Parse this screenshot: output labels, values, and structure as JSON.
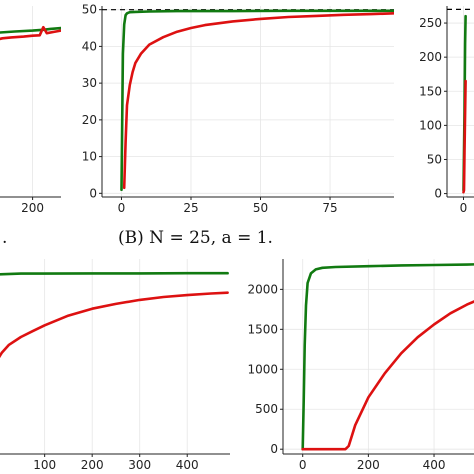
{
  "captions": {
    "left_fragment": ".",
    "middle": "(B) N = 25, a = 1."
  },
  "colors": {
    "green": "#117a11",
    "red": "#dd1111",
    "reference": "#000000"
  },
  "chart_data": [
    {
      "id": "top-left",
      "type": "line",
      "xticks": [
        200
      ],
      "yticks": [],
      "xlim": [
        -40,
        360
      ],
      "ylim": [
        0,
        45
      ],
      "series": [
        {
          "color": "green",
          "x": [
            -40,
            0,
            100,
            200,
            260,
            300,
            360
          ],
          "y": [
            38.5,
            38.7,
            39.0,
            39.2,
            39.4,
            39.6,
            39.8
          ]
        },
        {
          "color": "red",
          "x": [
            -40,
            -10,
            30,
            80,
            150,
            200,
            240,
            260,
            280,
            320,
            360
          ],
          "y": [
            36.8,
            37.0,
            37.4,
            37.6,
            37.8,
            38.0,
            38.1,
            40.0,
            38.6,
            38.9,
            39.2
          ]
        }
      ]
    },
    {
      "id": "top-middle",
      "type": "line",
      "xticks": [
        0,
        25,
        50,
        75
      ],
      "yticks": [
        0,
        10,
        20,
        30,
        40,
        50
      ],
      "xlim": [
        -7,
        98
      ],
      "ylim": [
        -1,
        51
      ],
      "reference_line": 50,
      "series": [
        {
          "color": "green",
          "x": [
            0,
            0.5,
            1,
            1.5,
            2,
            3,
            5,
            10,
            20,
            40,
            60,
            80,
            98
          ],
          "y": [
            1,
            38,
            46,
            48.5,
            49,
            49.3,
            49.4,
            49.5,
            49.6,
            49.6,
            49.7,
            49.7,
            49.7
          ]
        },
        {
          "color": "red",
          "x": [
            1,
            1.5,
            2,
            3,
            4,
            5,
            7,
            10,
            15,
            20,
            25,
            30,
            40,
            50,
            60,
            70,
            80,
            90,
            98
          ],
          "y": [
            1.5,
            14,
            24,
            29.5,
            33,
            35.5,
            38,
            40.5,
            42.5,
            44,
            45,
            45.8,
            46.8,
            47.5,
            48,
            48.3,
            48.6,
            48.8,
            49
          ]
        }
      ]
    },
    {
      "id": "top-right",
      "type": "line",
      "xticks": [
        0
      ],
      "yticks": [
        0,
        50,
        100,
        150,
        200,
        250
      ],
      "xlim": [
        -10,
        10
      ],
      "ylim": [
        -5,
        275
      ],
      "reference_line": 270,
      "series": [
        {
          "color": "green",
          "x": [
            0,
            0.6,
            1,
            1.3
          ],
          "y": [
            5,
            120,
            220,
            260
          ]
        },
        {
          "color": "red",
          "x": [
            0,
            0.3,
            0.6,
            1.3
          ],
          "y": [
            2,
            5,
            60,
            165
          ]
        }
      ]
    },
    {
      "id": "bottom-left",
      "type": "line",
      "xticks": [
        100,
        200,
        300,
        400
      ],
      "yticks": [],
      "xlim": [
        -15,
        490
      ],
      "ylim": [
        0,
        100
      ],
      "series": [
        {
          "color": "green",
          "x": [
            -15,
            50,
            100,
            200,
            300,
            400,
            485
          ],
          "y": [
            92,
            92.5,
            92.5,
            92.6,
            92.6,
            92.7,
            92.7
          ]
        },
        {
          "color": "red",
          "x": [
            0,
            10,
            25,
            50,
            75,
            100,
            150,
            200,
            250,
            300,
            350,
            400,
            450,
            485
          ],
          "y": [
            48,
            52,
            56,
            60,
            63,
            66,
            71,
            74.5,
            77,
            79,
            80.5,
            81.5,
            82.3,
            82.7
          ]
        }
      ]
    },
    {
      "id": "bottom-right",
      "type": "line",
      "xticks": [
        0,
        200,
        400
      ],
      "yticks": [
        0,
        500,
        1000,
        1500,
        2000
      ],
      "xlim": [
        -60,
        540
      ],
      "ylim": [
        -60,
        2380
      ],
      "series": [
        {
          "color": "green",
          "x": [
            0,
            3,
            6,
            10,
            15,
            25,
            40,
            60,
            100,
            200,
            300,
            400,
            500,
            540
          ],
          "y": [
            0,
            600,
            1300,
            1800,
            2080,
            2200,
            2250,
            2270,
            2280,
            2290,
            2300,
            2305,
            2310,
            2315
          ]
        },
        {
          "color": "red",
          "x": [
            0,
            130,
            140,
            160,
            200,
            250,
            300,
            350,
            400,
            450,
            500,
            540
          ],
          "y": [
            0,
            0,
            40,
            300,
            650,
            950,
            1200,
            1400,
            1560,
            1700,
            1810,
            1880
          ]
        }
      ]
    }
  ]
}
